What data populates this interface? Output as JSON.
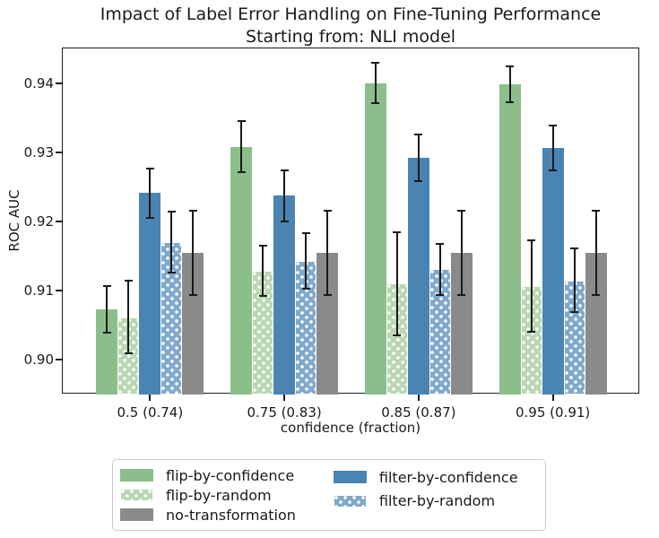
{
  "chart_data": {
    "type": "bar",
    "title": "Impact of Label Error Handling on Fine-Tuning Performance",
    "subtitle": "Starting from: NLI model",
    "xlabel": "confidence (fraction)",
    "ylabel": "ROC AUC",
    "categories": [
      "0.5 (0.74)",
      "0.75 (0.83)",
      "0.85 (0.87)",
      "0.95 (0.91)"
    ],
    "ylim": [
      0.895,
      0.945
    ],
    "yticks": [
      0.9,
      0.91,
      0.92,
      0.93,
      0.94
    ],
    "ytick_labels": [
      "0.90",
      "0.91",
      "0.92",
      "0.93",
      "0.94"
    ],
    "grid": false,
    "legend_position": "below-chart",
    "error_bars": true,
    "bar_order_note": "bars drawn left-to-right per group in series order",
    "series": [
      {
        "name": "flip-by-confidence",
        "color": "#8cbe8c",
        "hatch": "none",
        "values": [
          0.9073,
          0.9308,
          0.94,
          0.9398
        ],
        "errors": [
          0.0034,
          0.0037,
          0.0029,
          0.0026
        ]
      },
      {
        "name": "flip-by-random",
        "color": "#b9d7b2",
        "hatch": "dots",
        "values": [
          0.9062,
          0.9129,
          0.911,
          0.9107
        ],
        "errors": [
          0.0053,
          0.0036,
          0.0074,
          0.0066
        ]
      },
      {
        "name": "filter-by-confidence",
        "color": "#4a84b2",
        "hatch": "none",
        "values": [
          0.9241,
          0.9237,
          0.9292,
          0.9306
        ],
        "errors": [
          0.0036,
          0.0037,
          0.0034,
          0.0032
        ]
      },
      {
        "name": "filter-by-random",
        "color": "#7fa9cd",
        "hatch": "dots",
        "values": [
          0.917,
          0.9143,
          0.9131,
          0.9115
        ],
        "errors": [
          0.0044,
          0.004,
          0.0037,
          0.0046
        ]
      },
      {
        "name": "no-transformation",
        "color": "#8a8a8a",
        "hatch": "none",
        "values": [
          0.9155,
          0.9155,
          0.9155,
          0.9155
        ],
        "errors": [
          0.0061,
          0.0061,
          0.0061,
          0.0061
        ]
      }
    ],
    "legend_columns": [
      [
        "flip-by-confidence",
        "flip-by-random",
        "no-transformation"
      ],
      [
        "filter-by-confidence",
        "filter-by-random"
      ]
    ],
    "axis_color": "#1a1a1a",
    "errorbar_color": "#1a1a1a"
  }
}
